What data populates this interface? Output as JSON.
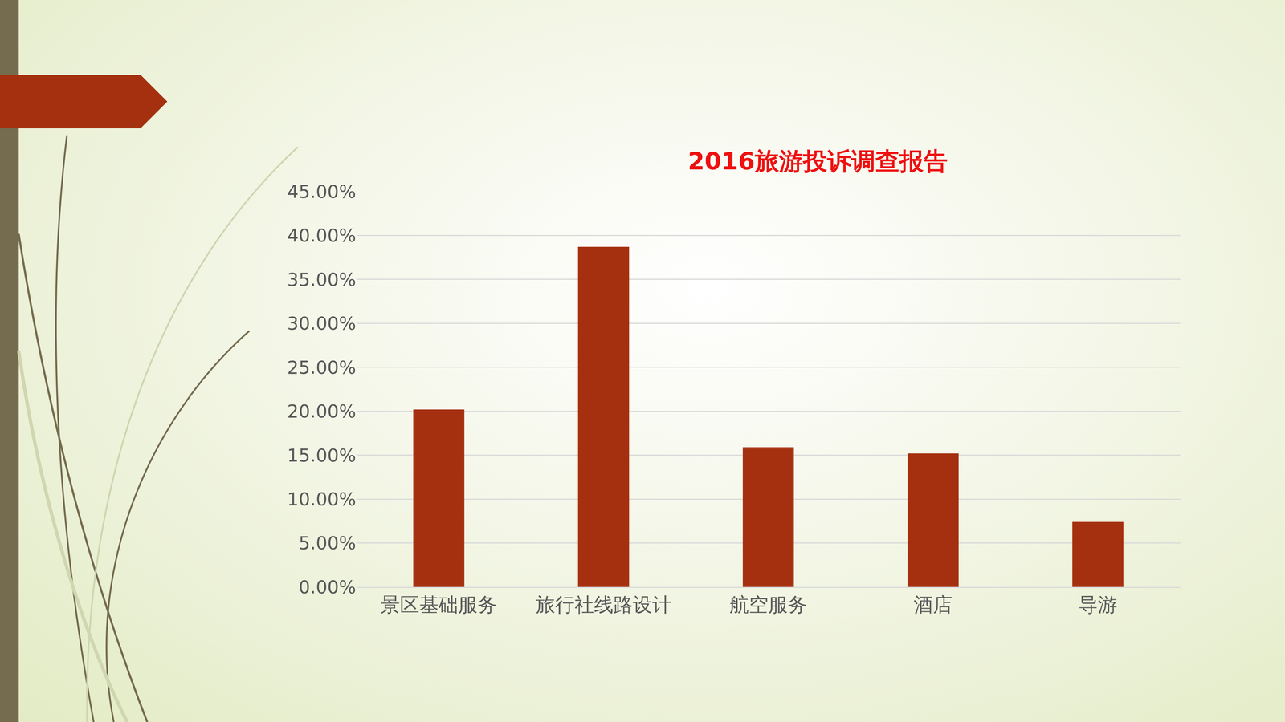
{
  "chart_data": {
    "type": "bar",
    "title": "2016旅游投诉调查报告",
    "categories": [
      "景区基础服务",
      "旅行社线路设计",
      "航空服务",
      "酒店",
      "导游"
    ],
    "values": [
      20.2,
      38.7,
      15.9,
      15.2,
      7.4
    ],
    "color": "#a5300f",
    "ylim": [
      0,
      45
    ],
    "yticks": [
      {
        "value": 0,
        "label": "0.00%"
      },
      {
        "value": 5,
        "label": "5.00%"
      },
      {
        "value": 10,
        "label": "10.00%"
      },
      {
        "value": 15,
        "label": "15.00%"
      },
      {
        "value": 20,
        "label": "20.00%"
      },
      {
        "value": 25,
        "label": "25.00%"
      },
      {
        "value": 30,
        "label": "30.00%"
      },
      {
        "value": 35,
        "label": "35.00%"
      },
      {
        "value": 40,
        "label": "40.00%"
      },
      {
        "value": 45,
        "label": "45.00%"
      }
    ],
    "grid": true
  }
}
